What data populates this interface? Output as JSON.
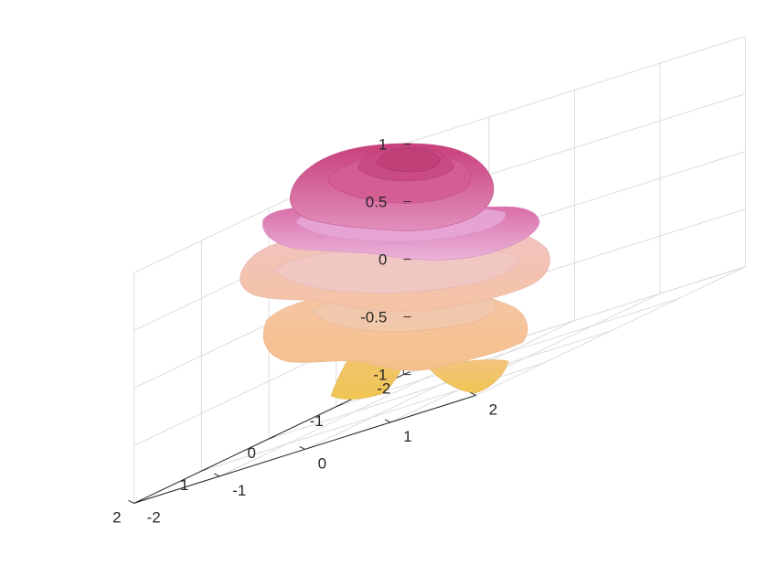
{
  "chart_data": {
    "type": "surface",
    "title": "",
    "xlabel": "",
    "ylabel": "",
    "zlabel": "",
    "xlim": [
      -2,
      2
    ],
    "ylim": [
      -2,
      2
    ],
    "zlim": [
      -1,
      1
    ],
    "x_ticks": [
      "-2",
      "-1",
      "0",
      "1",
      "2"
    ],
    "y_ticks": [
      "-2",
      "-1",
      "0",
      "1",
      "2"
    ],
    "z_ticks": [
      "-1",
      "-0.5",
      "0",
      "0.5",
      "1"
    ],
    "grid": true,
    "colors": {
      "top": "#c93f7a",
      "upper": "#e49ad0",
      "middle": "#f2c0a8",
      "lower": "#f5c48f",
      "bottom": "#f0cc5a"
    }
  }
}
